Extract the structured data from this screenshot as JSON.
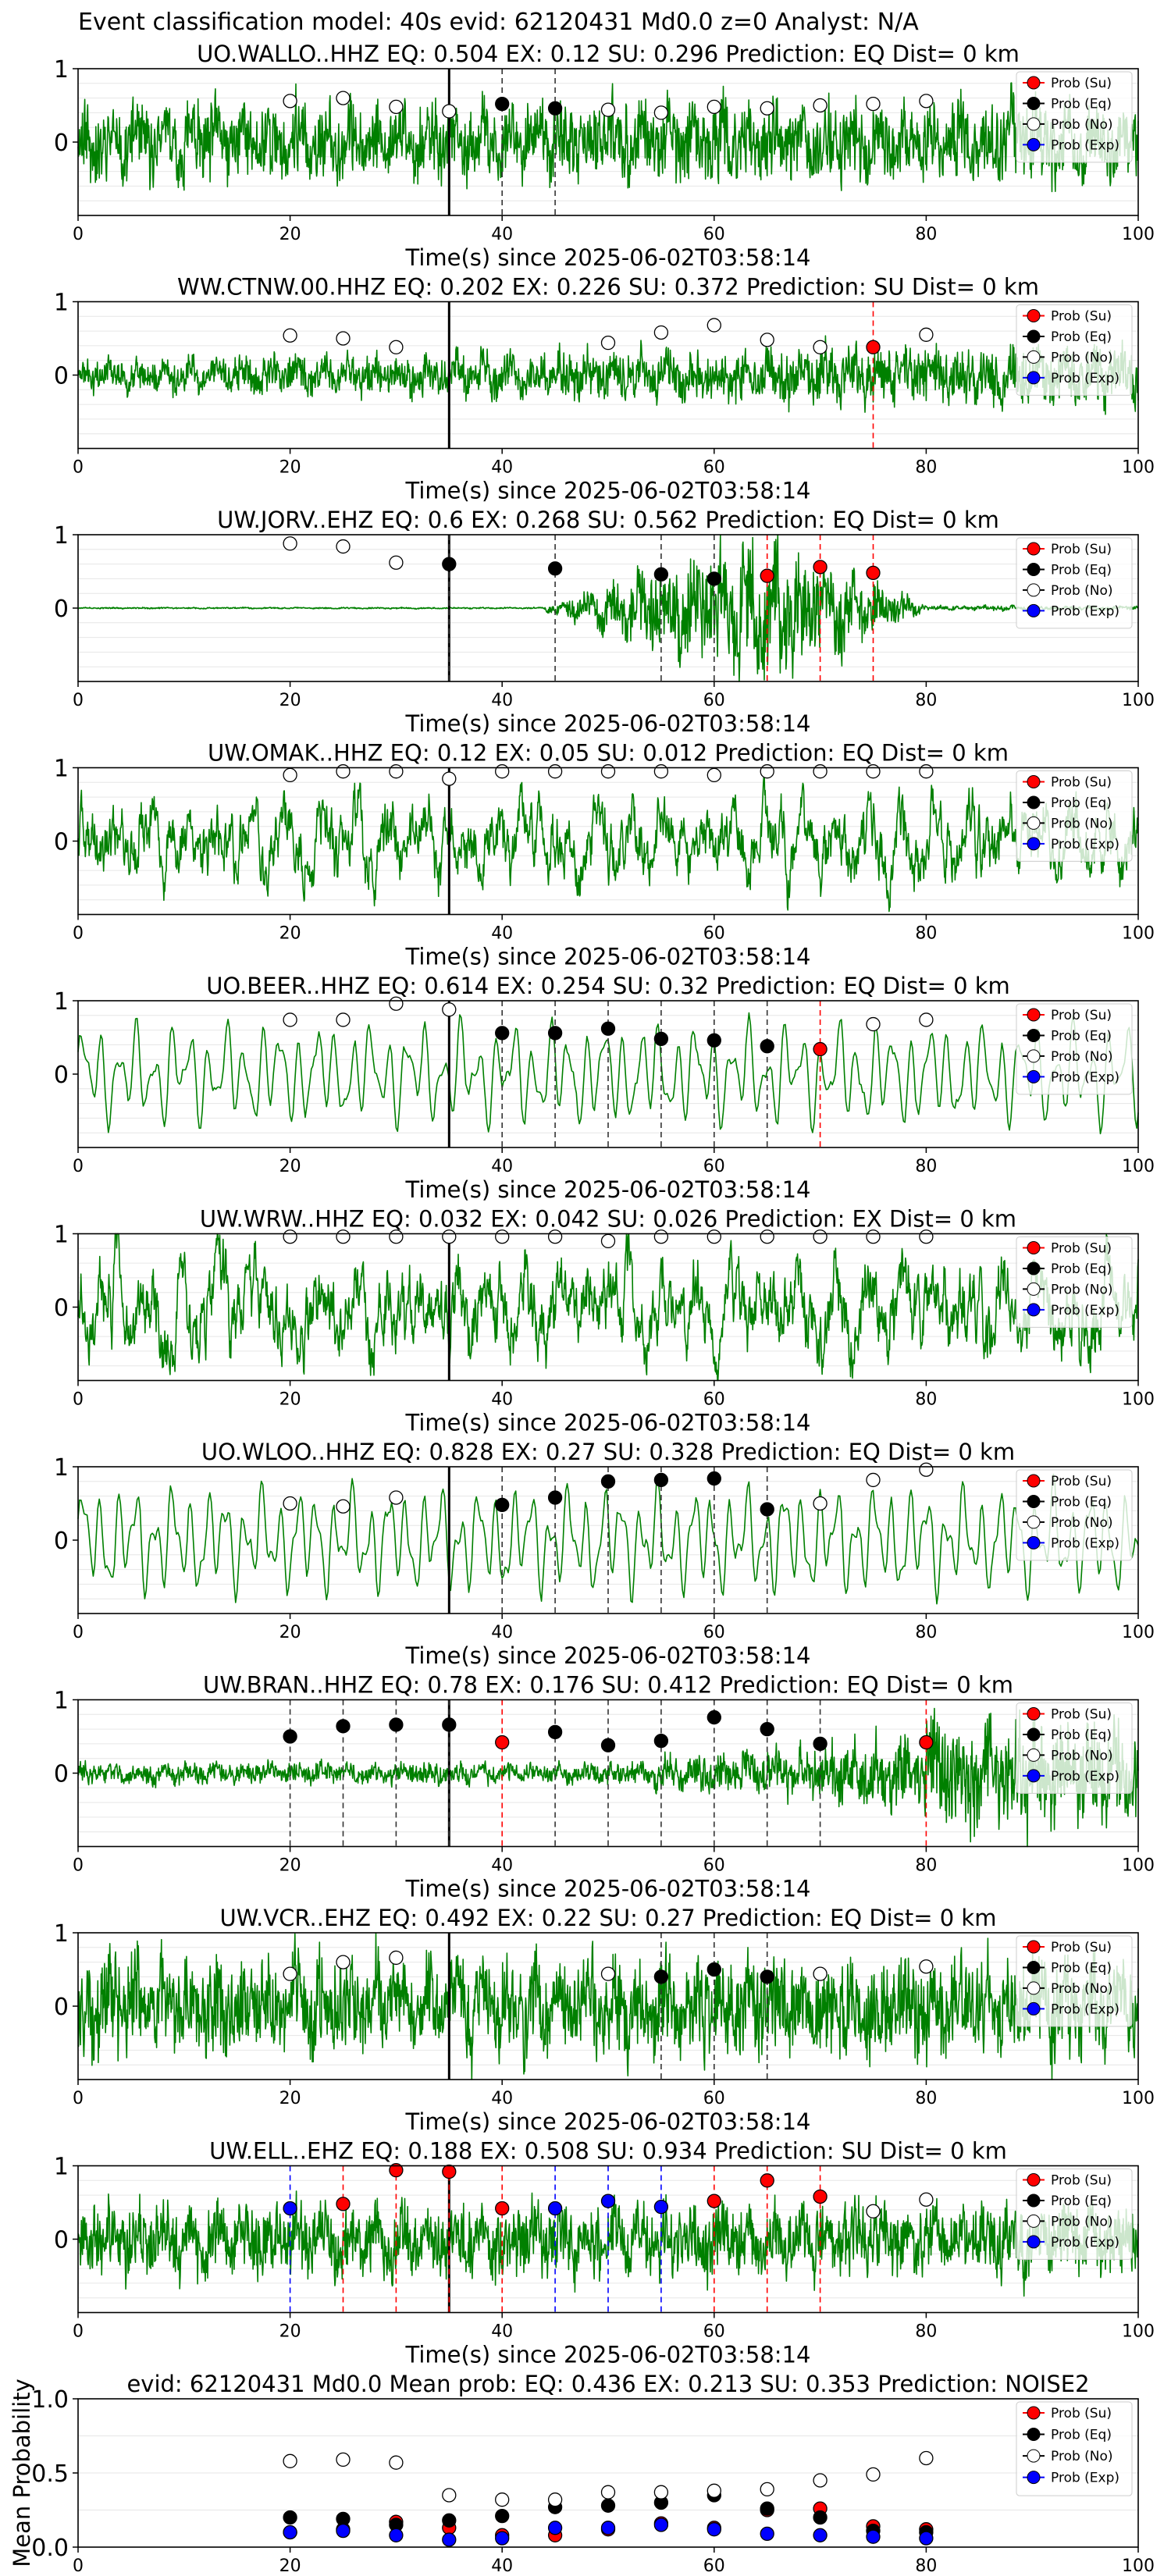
{
  "figure": {
    "suptitle": "Event classification model: 40s evid: 62120431 Md0.0 z=0 Analyst: N/A",
    "legend_labels": [
      "Prob (Su)",
      "Prob (Eq)",
      "Prob (No)",
      "Prob (Exp)"
    ],
    "colors": {
      "waveform": "#008000",
      "su": "#ff0000",
      "eq": "#000000",
      "no": "#ffffff",
      "exp": "#0000ff",
      "pick_line": "#000000"
    }
  },
  "chart_data": [
    {
      "type": "line",
      "title": "UO.WALLO..HHZ   EQ: 0.504  EX: 0.12  SU: 0.296   Prediction: EQ    Dist= 0 km",
      "xlabel": "Time(s) since 2025-06-02T03:58:14",
      "xlim": [
        0,
        100
      ],
      "ylim": [
        -1,
        1
      ],
      "x_ticks": [
        0,
        20,
        40,
        60,
        80,
        100
      ],
      "y_ticks": [
        1,
        0
      ],
      "pick_time": 35,
      "waveform": {
        "style": "noisy",
        "amplitude": 0.6,
        "seed": 11
      },
      "points": {
        "x": [
          20,
          25,
          30,
          35,
          40,
          45,
          50,
          55,
          60,
          65,
          70,
          75,
          80
        ],
        "class": [
          "no",
          "no",
          "no",
          "no",
          "eq",
          "eq",
          "no",
          "no",
          "no",
          "no",
          "no",
          "no",
          "no"
        ],
        "y": [
          0.56,
          0.6,
          0.48,
          0.42,
          0.52,
          0.46,
          0.44,
          0.4,
          0.48,
          0.46,
          0.5,
          0.52,
          0.56
        ]
      }
    },
    {
      "type": "line",
      "title": "WW.CTNW.00.HHZ   EQ: 0.202  EX: 0.226  SU: 0.372   Prediction: SU    Dist= 0 km",
      "xlabel": "Time(s) since 2025-06-02T03:58:14",
      "xlim": [
        0,
        100
      ],
      "ylim": [
        -1,
        1
      ],
      "x_ticks": [
        0,
        20,
        40,
        60,
        80,
        100
      ],
      "y_ticks": [
        1,
        0
      ],
      "pick_time": 35,
      "waveform": {
        "style": "noisy-growing",
        "amplitude": 0.45,
        "seed": 23
      },
      "points": {
        "x": [
          20,
          25,
          30,
          50,
          55,
          60,
          65,
          70,
          75,
          80
        ],
        "class": [
          "no",
          "no",
          "no",
          "no",
          "no",
          "no",
          "no",
          "no",
          "su",
          "no"
        ],
        "y": [
          0.54,
          0.5,
          0.38,
          0.44,
          0.58,
          0.68,
          0.48,
          0.38,
          0.38,
          0.55
        ]
      }
    },
    {
      "type": "line",
      "title": "UW.JORV..EHZ   EQ: 0.6  EX: 0.268  SU: 0.562   Prediction: EQ    Dist= 0 km",
      "xlabel": "Time(s) since 2025-06-02T03:58:14",
      "xlim": [
        0,
        100
      ],
      "ylim": [
        -1,
        1
      ],
      "x_ticks": [
        0,
        20,
        40,
        60,
        80,
        100
      ],
      "y_ticks": [
        1,
        0
      ],
      "pick_time": 35,
      "waveform": {
        "style": "burst",
        "amplitude": 0.9,
        "seed": 37
      },
      "points": {
        "x": [
          20,
          25,
          30,
          35,
          45,
          55,
          60,
          65,
          70,
          75
        ],
        "class": [
          "no",
          "no",
          "no",
          "eq",
          "eq",
          "eq",
          "eq",
          "su",
          "su",
          "su"
        ],
        "y": [
          0.88,
          0.84,
          0.62,
          0.6,
          0.54,
          0.46,
          0.4,
          0.44,
          0.56,
          0.48
        ]
      }
    },
    {
      "type": "line",
      "title": "UW.OMAK..HHZ   EQ: 0.12  EX: 0.05  SU: 0.012   Prediction: EQ    Dist= 0 km",
      "xlabel": "Time(s) since 2025-06-02T03:58:14",
      "xlim": [
        0,
        100
      ],
      "ylim": [
        -1,
        1
      ],
      "x_ticks": [
        0,
        20,
        40,
        60,
        80,
        100
      ],
      "y_ticks": [
        1,
        0
      ],
      "pick_time": 35,
      "waveform": {
        "style": "wavy",
        "amplitude": 0.55,
        "seed": 41
      },
      "points": {
        "x": [
          20,
          25,
          30,
          35,
          40,
          45,
          50,
          55,
          60,
          65,
          70,
          75,
          80
        ],
        "class": [
          "no",
          "no",
          "no",
          "no",
          "no",
          "no",
          "no",
          "no",
          "no",
          "no",
          "no",
          "no",
          "no"
        ],
        "y": [
          0.9,
          0.95,
          0.95,
          0.85,
          0.95,
          0.95,
          0.95,
          0.95,
          0.9,
          0.95,
          0.95,
          0.95,
          0.95
        ]
      }
    },
    {
      "type": "line",
      "title": "UO.BEER..HHZ   EQ: 0.614  EX: 0.254  SU: 0.32   Prediction: EQ    Dist= 0 km",
      "xlabel": "Time(s) since 2025-06-02T03:58:14",
      "xlim": [
        0,
        100
      ],
      "ylim": [
        -1,
        1
      ],
      "x_ticks": [
        0,
        20,
        40,
        60,
        80,
        100
      ],
      "y_ticks": [
        1,
        0
      ],
      "pick_time": 35,
      "waveform": {
        "style": "smooth",
        "amplitude": 0.75,
        "seed": 53
      },
      "points": {
        "x": [
          20,
          25,
          30,
          35,
          40,
          45,
          50,
          55,
          60,
          65,
          70,
          75,
          80
        ],
        "class": [
          "no",
          "no",
          "no",
          "no",
          "eq",
          "eq",
          "eq",
          "eq",
          "eq",
          "eq",
          "su",
          "no",
          "no"
        ],
        "y": [
          0.74,
          0.74,
          0.96,
          0.88,
          0.56,
          0.56,
          0.62,
          0.48,
          0.46,
          0.38,
          0.34,
          0.68,
          0.74
        ]
      }
    },
    {
      "type": "line",
      "title": "UW.WRW..HHZ   EQ: 0.032  EX: 0.042  SU: 0.026   Prediction: EX    Dist= 0 km",
      "xlabel": "Time(s) since 2025-06-02T03:58:14",
      "xlim": [
        0,
        100
      ],
      "ylim": [
        -1,
        1
      ],
      "x_ticks": [
        0,
        20,
        40,
        60,
        80,
        100
      ],
      "y_ticks": [
        1,
        0
      ],
      "pick_time": 35,
      "waveform": {
        "style": "wavy",
        "amplitude": 0.65,
        "seed": 67
      },
      "points": {
        "x": [
          20,
          25,
          30,
          35,
          40,
          45,
          50,
          55,
          60,
          65,
          70,
          75,
          80
        ],
        "class": [
          "no",
          "no",
          "no",
          "no",
          "no",
          "no",
          "no",
          "no",
          "no",
          "no",
          "no",
          "no",
          "no"
        ],
        "y": [
          0.96,
          0.96,
          0.96,
          0.96,
          0.96,
          0.96,
          0.9,
          0.96,
          0.96,
          0.96,
          0.96,
          0.96,
          0.96
        ]
      }
    },
    {
      "type": "line",
      "title": "UO.WLOO..HHZ   EQ: 0.828  EX: 0.27  SU: 0.328   Prediction: EQ    Dist= 0 km",
      "xlabel": "Time(s) since 2025-06-02T03:58:14",
      "xlim": [
        0,
        100
      ],
      "ylim": [
        -1,
        1
      ],
      "x_ticks": [
        0,
        20,
        40,
        60,
        80,
        100
      ],
      "y_ticks": [
        1,
        0
      ],
      "pick_time": 35,
      "waveform": {
        "style": "smooth",
        "amplitude": 0.8,
        "seed": 71
      },
      "points": {
        "x": [
          20,
          25,
          30,
          40,
          45,
          50,
          55,
          60,
          65,
          70,
          75,
          80
        ],
        "class": [
          "no",
          "no",
          "no",
          "eq",
          "eq",
          "eq",
          "eq",
          "eq",
          "eq",
          "no",
          "no",
          "no"
        ],
        "y": [
          0.5,
          0.46,
          0.58,
          0.48,
          0.58,
          0.8,
          0.82,
          0.84,
          0.42,
          0.5,
          0.82,
          0.96
        ]
      }
    },
    {
      "type": "line",
      "title": "UW.BRAN..HHZ   EQ: 0.78  EX: 0.176  SU: 0.412   Prediction: EQ    Dist= 0 km",
      "xlabel": "Time(s) since 2025-06-02T03:58:14",
      "xlim": [
        0,
        100
      ],
      "ylim": [
        -1,
        1
      ],
      "x_ticks": [
        0,
        20,
        40,
        60,
        80,
        100
      ],
      "y_ticks": [
        1,
        0
      ],
      "pick_time": 35,
      "waveform": {
        "style": "late-burst",
        "amplitude": 0.9,
        "seed": 83
      },
      "points": {
        "x": [
          20,
          25,
          30,
          35,
          40,
          45,
          50,
          55,
          60,
          65,
          70,
          80
        ],
        "class": [
          "eq",
          "eq",
          "eq",
          "eq",
          "su",
          "eq",
          "eq",
          "eq",
          "eq",
          "eq",
          "eq",
          "su"
        ],
        "y": [
          0.5,
          0.64,
          0.66,
          0.66,
          0.42,
          0.56,
          0.38,
          0.44,
          0.76,
          0.6,
          0.4,
          0.42
        ]
      }
    },
    {
      "type": "line",
      "title": "UW.VCR..EHZ   EQ: 0.492  EX: 0.22  SU: 0.27   Prediction: EQ    Dist= 0 km",
      "xlabel": "Time(s) since 2025-06-02T03:58:14",
      "xlim": [
        0,
        100
      ],
      "ylim": [
        -1,
        1
      ],
      "x_ticks": [
        0,
        20,
        40,
        60,
        80,
        100
      ],
      "y_ticks": [
        1,
        0
      ],
      "pick_time": 35,
      "waveform": {
        "style": "noisy",
        "amplitude": 0.75,
        "seed": 97
      },
      "points": {
        "x": [
          20,
          25,
          30,
          50,
          55,
          60,
          65,
          70,
          80
        ],
        "class": [
          "no",
          "no",
          "no",
          "no",
          "eq",
          "eq",
          "eq",
          "no",
          "no"
        ],
        "y": [
          0.44,
          0.6,
          0.66,
          0.44,
          0.4,
          0.5,
          0.4,
          0.44,
          0.54
        ]
      }
    },
    {
      "type": "line",
      "title": "UW.ELL..EHZ   EQ: 0.188  EX: 0.508  SU: 0.934   Prediction: SU    Dist= 0 km",
      "xlabel": "Time(s) since 2025-06-02T03:58:14",
      "xlim": [
        0,
        100
      ],
      "ylim": [
        -1,
        1
      ],
      "x_ticks": [
        0,
        20,
        40,
        60,
        80,
        100
      ],
      "y_ticks": [
        1,
        0
      ],
      "pick_time": 35,
      "waveform": {
        "style": "noisy",
        "amplitude": 0.55,
        "seed": 101
      },
      "points": {
        "x": [
          20,
          25,
          30,
          35,
          40,
          45,
          50,
          55,
          60,
          65,
          70,
          75,
          80
        ],
        "class": [
          "exp",
          "su",
          "su",
          "su",
          "su",
          "exp",
          "exp",
          "exp",
          "su",
          "su",
          "su",
          "no",
          "no"
        ],
        "y": [
          0.42,
          0.48,
          0.94,
          0.92,
          0.42,
          0.42,
          0.52,
          0.44,
          0.52,
          0.8,
          0.58,
          0.38,
          0.54
        ]
      }
    },
    {
      "type": "scatter",
      "title": "evid: 62120431  Md0.0   Mean prob:   EQ: 0.436  EX: 0.213  SU: 0.353   Prediction: NOISE2",
      "ylabel": "Mean Probability",
      "xlim": [
        0,
        100
      ],
      "ylim": [
        0,
        1
      ],
      "x_ticks": [
        0,
        20,
        40,
        60,
        80,
        100
      ],
      "y_ticks": [
        0.0,
        0.5,
        1.0
      ],
      "x": [
        20,
        25,
        30,
        35,
        40,
        45,
        50,
        55,
        60,
        65,
        70,
        75,
        80
      ],
      "series": [
        {
          "name": "Prob (Su)",
          "class": "su",
          "values": [
            0.1,
            0.12,
            0.17,
            0.13,
            0.08,
            0.08,
            0.12,
            0.16,
            0.13,
            0.25,
            0.26,
            0.14,
            0.12
          ]
        },
        {
          "name": "Prob (Eq)",
          "class": "eq",
          "values": [
            0.2,
            0.19,
            0.15,
            0.18,
            0.21,
            0.27,
            0.28,
            0.3,
            0.35,
            0.26,
            0.2,
            0.11,
            0.1
          ]
        },
        {
          "name": "Prob (No)",
          "class": "no",
          "values": [
            0.58,
            0.59,
            0.57,
            0.35,
            0.32,
            0.32,
            0.37,
            0.37,
            0.38,
            0.39,
            0.45,
            0.49,
            0.6
          ]
        },
        {
          "name": "Prob (Exp)",
          "class": "exp",
          "values": [
            0.1,
            0.11,
            0.08,
            0.05,
            0.06,
            0.13,
            0.13,
            0.15,
            0.12,
            0.09,
            0.08,
            0.07,
            0.06
          ]
        }
      ]
    }
  ]
}
